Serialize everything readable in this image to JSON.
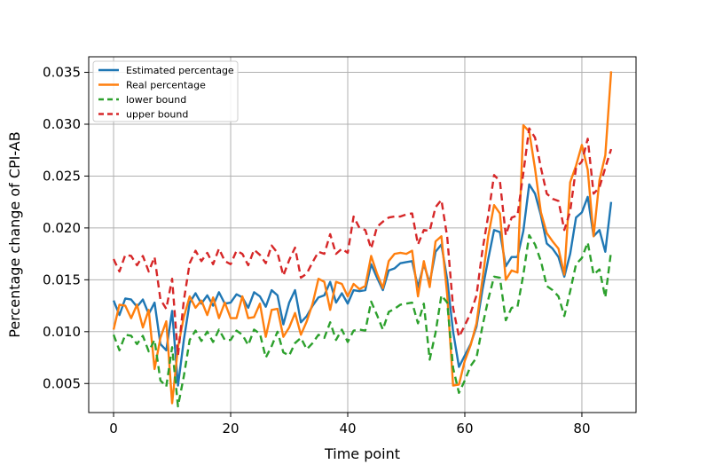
{
  "chart_data": {
    "type": "line",
    "title": "",
    "xlabel": "Time point",
    "ylabel": "Percentage change of CPI-AB",
    "xlim": [
      -4.25,
      89.25
    ],
    "ylim": [
      0.0022,
      0.0365
    ],
    "xticks": [
      0,
      20,
      40,
      60,
      80
    ],
    "yticks": [
      0.005,
      0.01,
      0.015,
      0.02,
      0.025,
      0.03,
      0.035
    ],
    "ytick_labels": [
      "0.005",
      "0.010",
      "0.015",
      "0.020",
      "0.025",
      "0.030",
      "0.035"
    ],
    "grid": true,
    "legend": "top-left",
    "x": [
      0,
      1,
      2,
      3,
      4,
      5,
      6,
      7,
      8,
      9,
      10,
      11,
      12,
      13,
      14,
      15,
      16,
      17,
      18,
      19,
      20,
      21,
      22,
      23,
      24,
      25,
      26,
      27,
      28,
      29,
      30,
      31,
      32,
      33,
      34,
      35,
      36,
      37,
      38,
      39,
      40,
      41,
      42,
      43,
      44,
      45,
      46,
      47,
      48,
      49,
      50,
      51,
      52,
      53,
      54,
      55,
      56,
      57,
      58,
      59,
      60,
      61,
      62,
      63,
      64,
      65,
      66,
      67,
      68,
      69,
      70,
      71,
      72,
      73,
      74,
      75,
      76,
      77,
      78,
      79,
      80,
      81,
      82,
      83,
      84,
      85
    ],
    "series": [
      {
        "name": "Estimated percentage",
        "color": "#1f77b4",
        "dash": "solid",
        "values": [
          0.013,
          0.0116,
          0.0132,
          0.0131,
          0.0124,
          0.0131,
          0.0117,
          0.0128,
          0.0088,
          0.0082,
          0.012,
          0.0048,
          0.0092,
          0.0128,
          0.0137,
          0.0127,
          0.0135,
          0.0125,
          0.0138,
          0.0127,
          0.0128,
          0.0136,
          0.0133,
          0.0123,
          0.0138,
          0.0134,
          0.0124,
          0.014,
          0.0135,
          0.0107,
          0.0128,
          0.014,
          0.0109,
          0.0115,
          0.0125,
          0.0133,
          0.0135,
          0.0148,
          0.0128,
          0.0137,
          0.0127,
          0.014,
          0.0139,
          0.014,
          0.0165,
          0.0152,
          0.014,
          0.0159,
          0.0161,
          0.0166,
          0.0167,
          0.0168,
          0.0143,
          0.0165,
          0.0147,
          0.0177,
          0.0184,
          0.015,
          0.01,
          0.0066,
          0.0077,
          0.0088,
          0.0105,
          0.014,
          0.017,
          0.0198,
          0.0196,
          0.0163,
          0.0172,
          0.0172,
          0.0197,
          0.0242,
          0.0233,
          0.0212,
          0.0185,
          0.018,
          0.0172,
          0.0153,
          0.0175,
          0.021,
          0.0215,
          0.023,
          0.0192,
          0.0198,
          0.0177,
          0.0225
        ]
      },
      {
        "name": "Real percentage",
        "color": "#ff7f0e",
        "dash": "solid",
        "values": [
          0.0102,
          0.0126,
          0.0125,
          0.0113,
          0.0126,
          0.0104,
          0.0121,
          0.0064,
          0.0094,
          0.011,
          0.0031,
          0.0085,
          0.0114,
          0.0134,
          0.0123,
          0.013,
          0.0116,
          0.0133,
          0.0113,
          0.0128,
          0.0113,
          0.0113,
          0.0134,
          0.0113,
          0.0114,
          0.0127,
          0.0095,
          0.0121,
          0.0122,
          0.0095,
          0.0104,
          0.0118,
          0.0097,
          0.011,
          0.0127,
          0.0151,
          0.0148,
          0.0121,
          0.0148,
          0.0146,
          0.0134,
          0.0146,
          0.0141,
          0.0144,
          0.0173,
          0.0156,
          0.0142,
          0.0168,
          0.0175,
          0.0176,
          0.0175,
          0.0178,
          0.0134,
          0.0168,
          0.0143,
          0.0187,
          0.0192,
          0.0135,
          0.0048,
          0.0049,
          0.0072,
          0.0087,
          0.0108,
          0.015,
          0.0192,
          0.0222,
          0.0214,
          0.015,
          0.0159,
          0.0157,
          0.0299,
          0.0293,
          0.0257,
          0.0215,
          0.0195,
          0.0187,
          0.018,
          0.0155,
          0.0244,
          0.026,
          0.028,
          0.0256,
          0.0192,
          0.0246,
          0.027,
          0.0351
        ]
      },
      {
        "name": "lower bound",
        "color": "#2ca02c",
        "dash": "dashed",
        "values": [
          0.0097,
          0.0082,
          0.0097,
          0.0096,
          0.0088,
          0.0096,
          0.0081,
          0.0092,
          0.0053,
          0.0047,
          0.0085,
          0.0028,
          0.0057,
          0.0092,
          0.0101,
          0.0091,
          0.01,
          0.009,
          0.0102,
          0.0092,
          0.0092,
          0.0101,
          0.0097,
          0.0087,
          0.0102,
          0.0098,
          0.0075,
          0.0086,
          0.01,
          0.008,
          0.0077,
          0.0089,
          0.0094,
          0.0083,
          0.0089,
          0.0097,
          0.0094,
          0.0109,
          0.0092,
          0.0102,
          0.009,
          0.0101,
          0.0102,
          0.0101,
          0.0129,
          0.0116,
          0.0102,
          0.0119,
          0.0122,
          0.0126,
          0.0127,
          0.0128,
          0.0108,
          0.0127,
          0.0073,
          0.0099,
          0.0135,
          0.0128,
          0.0065,
          0.0041,
          0.0053,
          0.0067,
          0.0075,
          0.0105,
          0.0131,
          0.0153,
          0.0152,
          0.0111,
          0.0123,
          0.0124,
          0.0155,
          0.0193,
          0.0184,
          0.0168,
          0.0144,
          0.014,
          0.0134,
          0.0115,
          0.0139,
          0.0165,
          0.0171,
          0.0186,
          0.0155,
          0.016,
          0.0133,
          0.0178
        ]
      },
      {
        "name": "upper bound",
        "color": "#d62728",
        "dash": "dashed",
        "values": [
          0.017,
          0.0158,
          0.0174,
          0.0173,
          0.0164,
          0.0173,
          0.0158,
          0.0172,
          0.0131,
          0.0122,
          0.0151,
          0.0077,
          0.013,
          0.0166,
          0.0178,
          0.0168,
          0.0176,
          0.0165,
          0.018,
          0.0168,
          0.0165,
          0.0178,
          0.0175,
          0.0164,
          0.0179,
          0.0174,
          0.0166,
          0.0183,
          0.0176,
          0.0154,
          0.0169,
          0.0181,
          0.0152,
          0.0156,
          0.0167,
          0.0177,
          0.0175,
          0.0194,
          0.0175,
          0.018,
          0.0176,
          0.0211,
          0.02,
          0.0198,
          0.018,
          0.0201,
          0.0206,
          0.021,
          0.0211,
          0.0211,
          0.0213,
          0.0214,
          0.0184,
          0.0198,
          0.0197,
          0.022,
          0.0227,
          0.0191,
          0.0123,
          0.0095,
          0.0106,
          0.0118,
          0.0135,
          0.0178,
          0.0212,
          0.0251,
          0.0245,
          0.0193,
          0.021,
          0.0212,
          0.0253,
          0.0296,
          0.0287,
          0.0258,
          0.0233,
          0.0228,
          0.0226,
          0.0198,
          0.0216,
          0.0258,
          0.0264,
          0.0286,
          0.0233,
          0.0239,
          0.0258,
          0.0276
        ]
      }
    ]
  }
}
